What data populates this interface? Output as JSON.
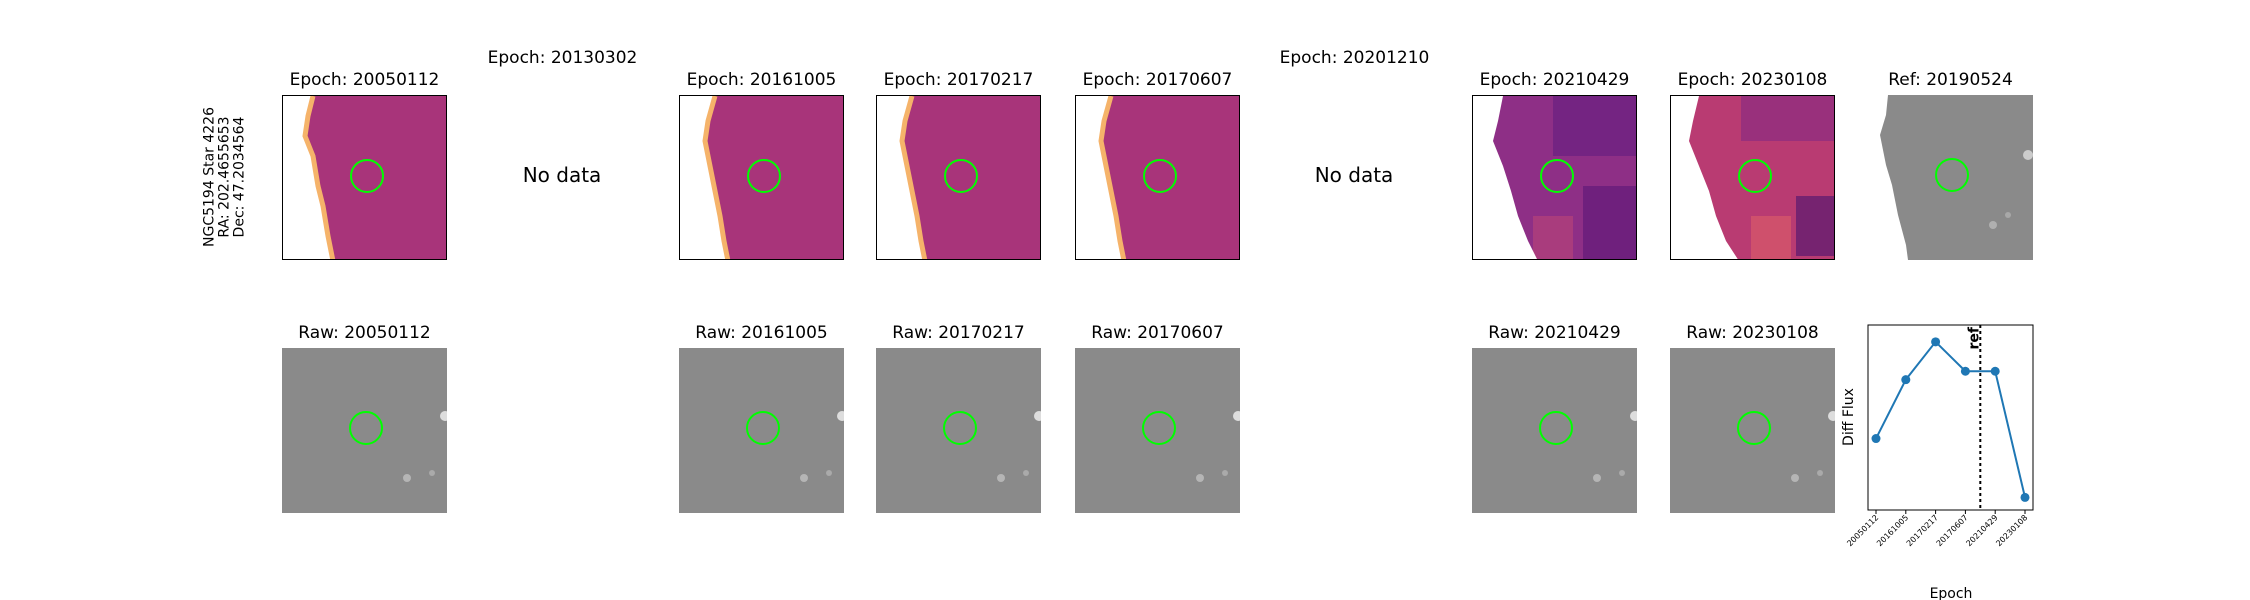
{
  "star_label": {
    "line1": "NGC5194 Star 4226",
    "line2": "RA: 202.4655653",
    "line3": "Dec: 47.2034564"
  },
  "epochs": [
    {
      "title": "Epoch: 20050112",
      "raw_title": "Raw: 20050112",
      "has_data": true
    },
    {
      "title": "Epoch: 20130302",
      "raw_title": "",
      "has_data": false,
      "nodata_text": "No data"
    },
    {
      "title": "Epoch: 20161005",
      "raw_title": "Raw: 20161005",
      "has_data": true
    },
    {
      "title": "Epoch: 20170217",
      "raw_title": "Raw: 20170217",
      "has_data": true
    },
    {
      "title": "Epoch: 20170607",
      "raw_title": "Raw: 20170607",
      "has_data": true
    },
    {
      "title": "Epoch: 20201210",
      "raw_title": "",
      "has_data": false,
      "nodata_text": "No data"
    },
    {
      "title": "Epoch: 20210429",
      "raw_title": "Raw: 20210429",
      "has_data": true
    },
    {
      "title": "Epoch: 20230108",
      "raw_title": "Raw: 20230108",
      "has_data": true
    }
  ],
  "ref_title": "Ref: 20190524",
  "colors": {
    "diff_bg": "#a8347a",
    "diff_edge": "#f5b36a",
    "diff_dark": "#3b0f70",
    "raw_bg": "#8a8a8a",
    "circle": "#00ff00",
    "line": "#1f77b4"
  },
  "chart_data": {
    "type": "line",
    "categories": [
      "20050112",
      "20161005",
      "20170217",
      "20170607",
      "20210429",
      "20230108"
    ],
    "values": [
      -0.6,
      0.1,
      0.55,
      0.2,
      0.2,
      -1.3
    ],
    "ref_label": "ref",
    "ref_position": 3.5,
    "xlabel": "Epoch",
    "ylabel": "Diff Flux",
    "ylim": [
      -1.45,
      0.75
    ]
  }
}
